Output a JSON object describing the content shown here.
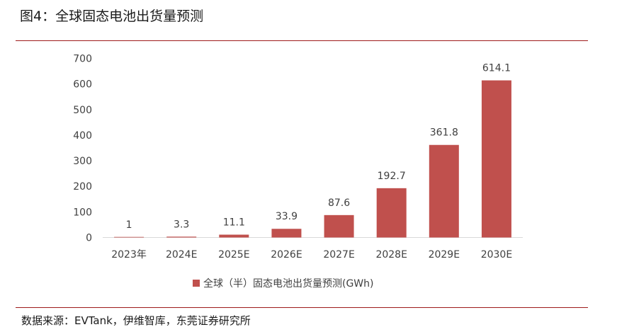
{
  "figure": {
    "title": "图4：全球固态电池出货量预测",
    "source": "数据来源：EVTank，伊维智库，东莞证券研究所"
  },
  "chart_data": {
    "type": "bar",
    "categories": [
      "2023年",
      "2024E",
      "2025E",
      "2026E",
      "2027E",
      "2028E",
      "2029E",
      "2030E"
    ],
    "series": [
      {
        "name": "全球（半）固态电池出货量预测(GWh)",
        "values": [
          1,
          3.3,
          11.1,
          33.9,
          87.6,
          192.7,
          361.8,
          614.1
        ],
        "labels": [
          "1",
          "3.3",
          "11.1",
          "33.9",
          "87.6",
          "192.7",
          "361.8",
          "614.1"
        ],
        "color": "#c0504d"
      }
    ],
    "yticks": [
      0,
      100,
      200,
      300,
      400,
      500,
      600,
      700
    ],
    "ylim": [
      0,
      700
    ],
    "grid": false,
    "legend_position": "bottom",
    "axis_color": "#d9d9d9",
    "label_color": "#404040"
  }
}
